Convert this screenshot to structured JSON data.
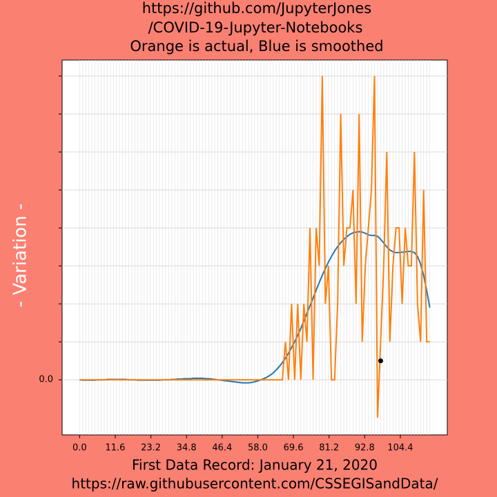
{
  "chart_data": {
    "type": "line",
    "title": [
      "https://github.com/JupyterJones",
      "/COVID-19-Jupyter-Notebooks",
      "Orange is actual, Blue is smoothed"
    ],
    "ylabel": "- Variation -",
    "xlabel": [
      "First Data Record: January 21, 2020",
      "https://raw.githubusercontent.com/CSSEGISandData/"
    ],
    "x": [
      0,
      1,
      2,
      3,
      4,
      5,
      6,
      7,
      8,
      9,
      10,
      11,
      12,
      13,
      14,
      15,
      16,
      17,
      18,
      19,
      20,
      21,
      22,
      23,
      24,
      25,
      26,
      27,
      28,
      29,
      30,
      31,
      32,
      33,
      34,
      35,
      36,
      37,
      38,
      39,
      40,
      41,
      42,
      43,
      44,
      45,
      46,
      47,
      48,
      49,
      50,
      51,
      52,
      53,
      54,
      55,
      56,
      57,
      58,
      59,
      60,
      61,
      62,
      63,
      64,
      65,
      66,
      67,
      68,
      69,
      70,
      71,
      72,
      73,
      74,
      75,
      76,
      77,
      78,
      79,
      80,
      81,
      82,
      83,
      84,
      85,
      86,
      87,
      88,
      89,
      90,
      91,
      92,
      93,
      94,
      95,
      96,
      97,
      98,
      99,
      100,
      101,
      102,
      103,
      104,
      105,
      106,
      107,
      108,
      109,
      110,
      111,
      112,
      113,
      114
    ],
    "series": [
      {
        "name": "smoothed",
        "color": "#1f77b4",
        "values": [
          0,
          -0.01,
          -0.01,
          -0.01,
          -0.01,
          -0.01,
          0,
          0,
          0,
          0.01,
          0.01,
          0.01,
          0.01,
          0.01,
          0.01,
          0.01,
          0,
          0,
          0,
          -0.01,
          -0.01,
          -0.01,
          -0.01,
          -0.01,
          -0.01,
          -0.01,
          -0.01,
          0,
          0,
          0,
          0.01,
          0.01,
          0.02,
          0.02,
          0.03,
          0.03,
          0.03,
          0.04,
          0.04,
          0.04,
          0.04,
          0.03,
          0.03,
          0.02,
          0.01,
          0,
          -0.01,
          -0.02,
          -0.03,
          -0.04,
          -0.05,
          -0.06,
          -0.07,
          -0.08,
          -0.08,
          -0.08,
          -0.07,
          -0.05,
          -0.03,
          0,
          0.03,
          0.07,
          0.12,
          0.18,
          0.26,
          0.35,
          0.45,
          0.57,
          0.7,
          0.85,
          1.0,
          1.17,
          1.35,
          1.55,
          1.75,
          1.95,
          2.15,
          2.36,
          2.56,
          2.75,
          2.93,
          3.1,
          3.25,
          3.39,
          3.51,
          3.61,
          3.7,
          3.77,
          3.83,
          3.87,
          3.89,
          3.9,
          3.89,
          3.86,
          3.82,
          3.8,
          3.8,
          3.78,
          3.7,
          3.6,
          3.5,
          3.42,
          3.37,
          3.35,
          3.35,
          3.36,
          3.37,
          3.38,
          3.38,
          3.35,
          3.25,
          3.05,
          2.75,
          2.35,
          1.9
        ]
      },
      {
        "name": "actual",
        "color": "#ff7f0e",
        "values": [
          0,
          0,
          0,
          0,
          0,
          0,
          0,
          0,
          0,
          0,
          0,
          0,
          0,
          0,
          0,
          0,
          0,
          0,
          0,
          0,
          0,
          0,
          0,
          0,
          0,
          0,
          0,
          0,
          0,
          0,
          0,
          0,
          0,
          0,
          0,
          0,
          0,
          0,
          0,
          0,
          0,
          0,
          0,
          0,
          0,
          0,
          0,
          0,
          0,
          0,
          0,
          0,
          0,
          0,
          0,
          0,
          0,
          0,
          0,
          0,
          0,
          0,
          0,
          0,
          0,
          0,
          0,
          1,
          0,
          2,
          0,
          2,
          0,
          2,
          1,
          4,
          0,
          4,
          3,
          8,
          2,
          3,
          0,
          0,
          2,
          7,
          3,
          4,
          4,
          5,
          2,
          7,
          1,
          3,
          4,
          5,
          8,
          -1,
          1,
          3,
          6,
          1,
          3,
          4,
          4,
          2,
          4,
          3,
          3,
          6,
          2,
          1,
          5,
          1,
          1
        ]
      }
    ],
    "marker": {
      "x": 98,
      "y": 0.5,
      "color": "#000000"
    },
    "xlim": [
      -5.7,
      119.7
    ],
    "xticks": [
      {
        "value": 0,
        "label": "0.0"
      },
      11.6,
      23.2,
      34.8,
      46.4,
      {
        "value": 58,
        "label": "58.0"
      },
      69.6,
      81.2,
      92.8,
      104.4
    ],
    "ylim": [
      -1.45,
      8.42
    ],
    "yticks": [
      {
        "value": 0,
        "label": "0.0"
      }
    ],
    "minor_yticks": [
      1,
      2,
      3,
      4,
      5,
      6,
      7,
      8
    ],
    "grid": true,
    "background": "#fa8072"
  }
}
